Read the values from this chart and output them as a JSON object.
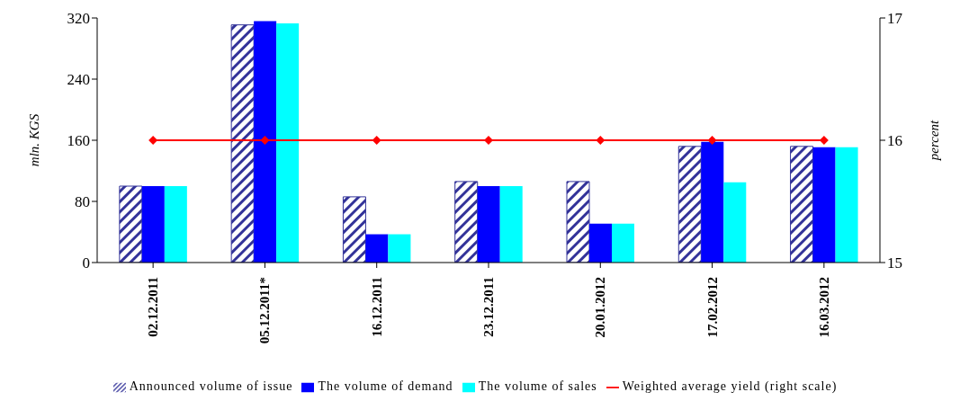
{
  "chart_data": {
    "type": "bar",
    "categories": [
      "02.12.2011",
      "05.12.2011*",
      "16.12.2011",
      "23.12.2011",
      "20.01.2012",
      "17.02.2012",
      "16.03.2012"
    ],
    "series": [
      {
        "name": "Announced volume of issue",
        "color": "#333399",
        "values": [
          100,
          311,
          86,
          106,
          106,
          152,
          152
        ]
      },
      {
        "name": "The volume of demand",
        "color": "#0000ff",
        "values": [
          100,
          316,
          37,
          100,
          51,
          158,
          151
        ]
      },
      {
        "name": "The volume of sales",
        "color": "#00ffff",
        "values": [
          100,
          313,
          37,
          100,
          51,
          105,
          151
        ]
      },
      {
        "name": "Weighted average yield (right scale)",
        "type": "line",
        "axis": "y2",
        "color": "#ff0000",
        "values": [
          16,
          16,
          16,
          16,
          16,
          16,
          16
        ]
      }
    ],
    "ylabel": "mln. KGS",
    "y2label": "percent",
    "ylim": [
      0,
      320
    ],
    "yticks": [
      0,
      80,
      160,
      240,
      320
    ],
    "y2lim": [
      15,
      17
    ],
    "y2ticks": [
      15,
      16,
      17
    ],
    "grid": false,
    "legend": "bottom",
    "marker": "diamond",
    "line_style": "solid"
  }
}
